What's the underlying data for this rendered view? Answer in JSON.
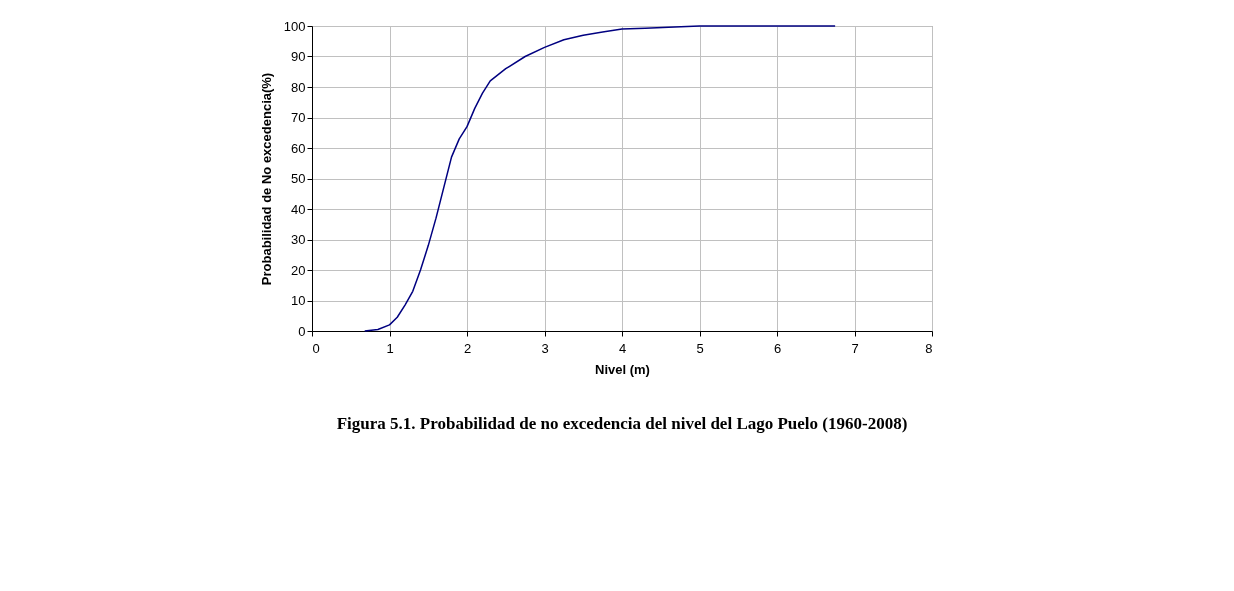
{
  "chart_data": {
    "type": "line",
    "xlabel": "Nivel (m)",
    "ylabel": "Probabilidad de No excedencia(%)",
    "x": [
      0.68,
      0.85,
      1.0,
      1.1,
      1.2,
      1.3,
      1.4,
      1.5,
      1.6,
      1.7,
      1.8,
      1.9,
      2.0,
      2.1,
      2.2,
      2.3,
      2.5,
      2.75,
      3.0,
      3.25,
      3.5,
      3.75,
      4.0,
      4.3,
      4.6,
      5.0,
      6.0,
      6.75
    ],
    "series": [
      {
        "color": "#000080",
        "values": [
          0,
          0.5,
          2,
          4.5,
          8.5,
          13,
          20,
          28,
          37,
          47,
          57,
          63,
          67,
          73,
          78,
          82,
          86,
          90,
          93,
          95.5,
          97,
          98,
          99,
          99.3,
          99.6,
          100,
          100,
          100
        ]
      }
    ],
    "xlim": [
      0,
      8
    ],
    "xticks": [
      0,
      1,
      2,
      3,
      4,
      5,
      6,
      7,
      8
    ],
    "ylim": [
      0,
      100
    ],
    "yticks": [
      0,
      10,
      20,
      30,
      40,
      50,
      60,
      70,
      80,
      90,
      100
    ],
    "grid": true,
    "marker": "none",
    "line_style": "solid",
    "annotations": [
      "Figura 5.1.  Probabilidad de no excedencia del nivel del Lago Puelo (1960-2008)"
    ]
  }
}
